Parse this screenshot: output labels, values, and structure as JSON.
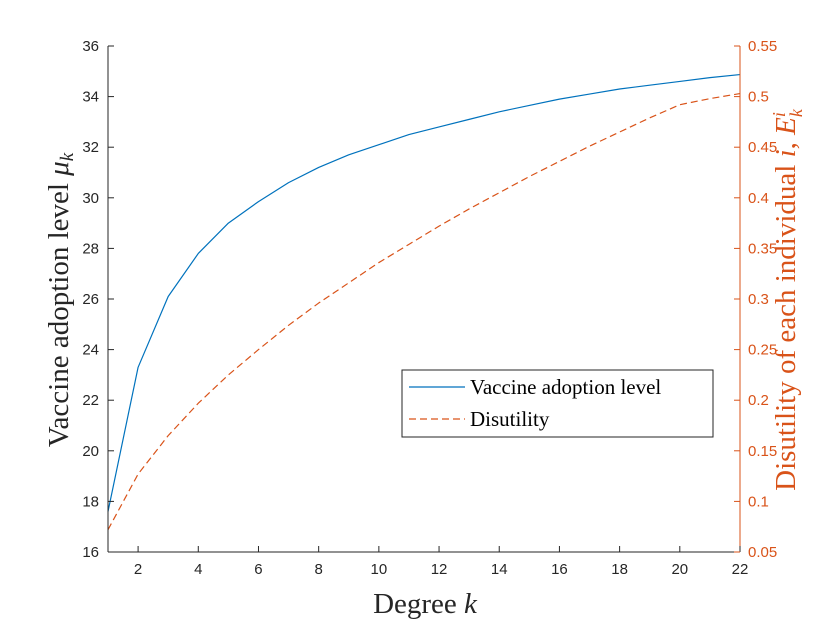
{
  "colors": {
    "left_axis": "#262626",
    "right_axis": "#D95319",
    "series_vaccine": "#0072BD",
    "series_disutility": "#D95319",
    "background": "#ffffff"
  },
  "chart_data": {
    "type": "line",
    "xlabel": {
      "text": "Degree",
      "var": "k"
    },
    "ylabel_left": {
      "text": "Vaccine adoption level",
      "var": "μ",
      "sub": "k"
    },
    "ylabel_right": {
      "text": "Disutility of each individual",
      "var": "i",
      "comma": ",",
      "var2": "E",
      "sup": "i",
      "sub": "k"
    },
    "xlim": [
      1,
      22
    ],
    "ylim_left": [
      16,
      36
    ],
    "ylim_right": [
      0.05,
      0.55
    ],
    "x_ticks": [
      2,
      4,
      6,
      8,
      10,
      12,
      14,
      16,
      18,
      20,
      22
    ],
    "y_left_ticks": [
      "16",
      "18",
      "20",
      "22",
      "24",
      "26",
      "28",
      "30",
      "32",
      "34",
      "36"
    ],
    "y_right_ticks": [
      "0.05",
      "0.1",
      "0.15",
      "0.2",
      "0.25",
      "0.3",
      "0.35",
      "0.4",
      "0.45",
      "0.5",
      "0.55"
    ],
    "grid": false,
    "legend_position": "center-right",
    "x": [
      1,
      2,
      3,
      4,
      5,
      6,
      7,
      8,
      9,
      10,
      11,
      12,
      13,
      14,
      15,
      16,
      17,
      18,
      19,
      20,
      21,
      22
    ],
    "series": [
      {
        "name": "Vaccine adoption level",
        "axis": "left",
        "style": "solid",
        "values": [
          17.6,
          23.3,
          26.1,
          27.8,
          29.0,
          29.85,
          30.6,
          31.2,
          31.7,
          32.1,
          32.5,
          32.8,
          33.1,
          33.4,
          33.65,
          33.9,
          34.1,
          34.3,
          34.45,
          34.6,
          34.75,
          34.87
        ]
      },
      {
        "name": "Disutility",
        "axis": "right",
        "style": "dashed",
        "values": [
          0.072,
          0.127,
          0.165,
          0.197,
          0.225,
          0.25,
          0.274,
          0.296,
          0.316,
          0.336,
          0.354,
          0.372,
          0.389,
          0.405,
          0.421,
          0.436,
          0.451,
          0.465,
          0.479,
          0.492,
          0.498,
          0.503
        ]
      }
    ]
  }
}
